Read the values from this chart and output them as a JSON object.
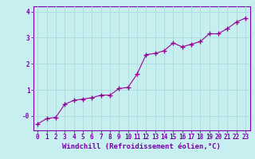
{
  "x": [
    0,
    1,
    2,
    3,
    4,
    5,
    6,
    7,
    8,
    9,
    10,
    11,
    12,
    13,
    14,
    15,
    16,
    17,
    18,
    19,
    20,
    21,
    22,
    23
  ],
  "y": [
    -0.3,
    -0.1,
    -0.05,
    0.45,
    0.6,
    0.65,
    0.7,
    0.8,
    0.8,
    1.05,
    1.1,
    1.6,
    2.35,
    2.4,
    2.5,
    2.8,
    2.65,
    2.75,
    2.85,
    3.15,
    3.15,
    3.35,
    3.6,
    3.75
  ],
  "line_color": "#990099",
  "marker": "+",
  "marker_size": 4,
  "marker_linewidth": 1.0,
  "line_width": 0.8,
  "bg_color": "#c8eff0",
  "grid_color": "#aadddd",
  "axis_color": "#7700aa",
  "xlabel": "Windchill (Refroidissement éolien,°C)",
  "xlabel_fontsize": 6.5,
  "tick_fontsize": 5.5,
  "ylim": [
    -0.55,
    4.2
  ],
  "xlim": [
    -0.5,
    23.5
  ],
  "yticks": [
    0,
    1,
    2,
    3,
    4
  ],
  "ytick_labels": [
    "-0",
    "1",
    "2",
    "3",
    "4"
  ],
  "xticks": [
    0,
    1,
    2,
    3,
    4,
    5,
    6,
    7,
    8,
    9,
    10,
    11,
    12,
    13,
    14,
    15,
    16,
    17,
    18,
    19,
    20,
    21,
    22,
    23
  ]
}
